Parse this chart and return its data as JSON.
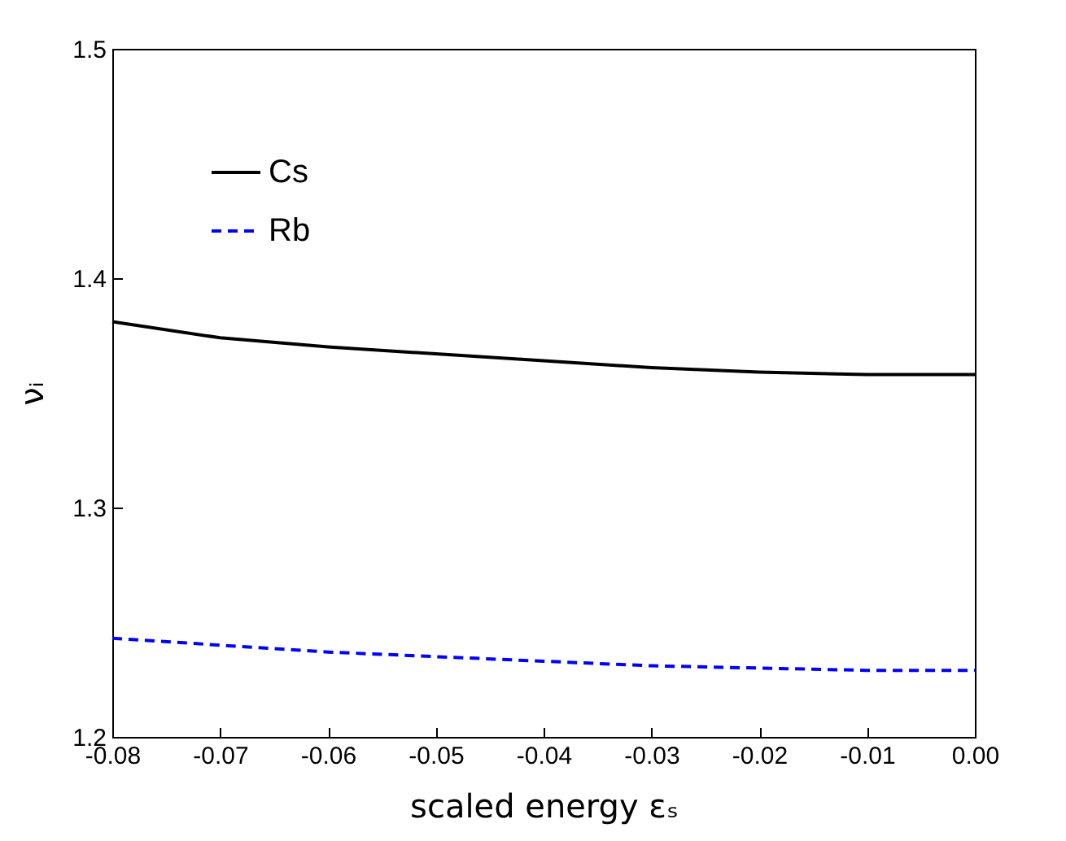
{
  "chart_data": {
    "type": "line",
    "xlabel": "scaled energy εₛ",
    "ylabel": "νᵢ",
    "x": [
      -0.08,
      -0.07,
      -0.06,
      -0.05,
      -0.04,
      -0.03,
      -0.02,
      -0.01,
      0.0
    ],
    "series": [
      {
        "name": "Cs",
        "color": "#000000",
        "line_style": "solid",
        "values": [
          1.381,
          1.374,
          1.37,
          1.367,
          1.364,
          1.361,
          1.359,
          1.358,
          1.358
        ]
      },
      {
        "name": "Rb",
        "color": "#0000ff",
        "line_style": "dashed",
        "values": [
          1.243,
          1.24,
          1.237,
          1.235,
          1.233,
          1.231,
          1.23,
          1.229,
          1.229
        ]
      }
    ],
    "xlim": [
      -0.08,
      0.0
    ],
    "ylim": [
      1.2,
      1.5
    ],
    "xticks": [
      {
        "value": -0.08,
        "label": "-0.08"
      },
      {
        "value": -0.07,
        "label": "-0.07"
      },
      {
        "value": -0.06,
        "label": "-0.06"
      },
      {
        "value": -0.05,
        "label": "-0.05"
      },
      {
        "value": -0.04,
        "label": "-0.04"
      },
      {
        "value": -0.03,
        "label": "-0.03"
      },
      {
        "value": -0.02,
        "label": "-0.02"
      },
      {
        "value": -0.01,
        "label": "-0.01"
      },
      {
        "value": 0.0,
        "label": "0.00"
      }
    ],
    "yticks": [
      1.2,
      1.3,
      1.4,
      1.5
    ],
    "grid": false,
    "legend": "top left",
    "marker": "none"
  }
}
